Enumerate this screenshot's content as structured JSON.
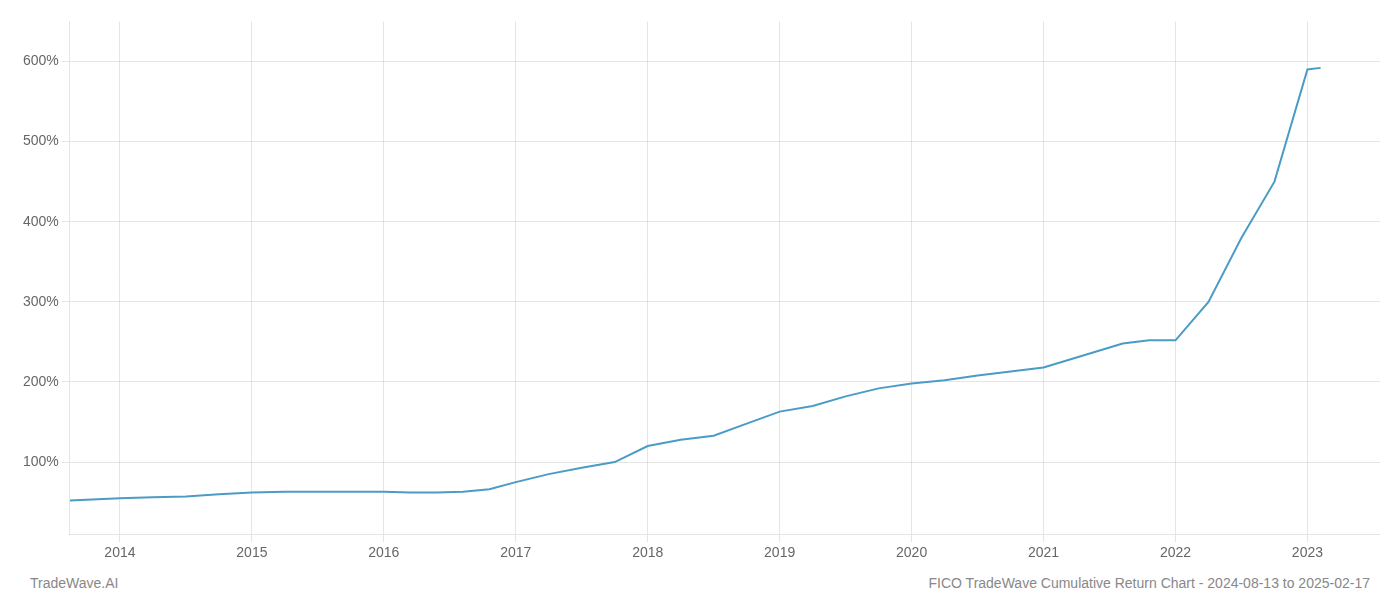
{
  "chart_data": {
    "type": "line",
    "title": "FICO TradeWave Cumulative Return Chart - 2024-08-13 to 2025-02-17",
    "annotations": [
      "TradeWave.AI"
    ],
    "x": [
      2013.62,
      2014.0,
      2014.25,
      2014.5,
      2014.75,
      2015.0,
      2015.25,
      2015.5,
      2015.75,
      2016.0,
      2016.2,
      2016.4,
      2016.6,
      2016.8,
      2017.0,
      2017.25,
      2017.5,
      2017.75,
      2018.0,
      2018.25,
      2018.5,
      2018.75,
      2019.0,
      2019.25,
      2019.5,
      2019.75,
      2020.0,
      2020.25,
      2020.5,
      2020.75,
      2021.0,
      2021.2,
      2021.4,
      2021.6,
      2021.8,
      2022.0,
      2022.25,
      2022.5,
      2022.75,
      2023.0,
      2023.1
    ],
    "values": [
      52,
      55,
      56,
      57,
      60,
      62,
      63,
      63,
      63,
      63,
      62,
      62,
      63,
      66,
      75,
      85,
      93,
      100,
      120,
      128,
      133,
      148,
      163,
      170,
      182,
      192,
      198,
      202,
      208,
      213,
      218,
      228,
      238,
      248,
      252,
      252,
      300,
      380,
      450,
      590,
      592
    ],
    "color": "#4a9cc7",
    "xlim": [
      2013.62,
      2023.55
    ],
    "xticks": [
      2014,
      2015,
      2016,
      2017,
      2018,
      2019,
      2020,
      2021,
      2022,
      2023
    ],
    "ylim": [
      10,
      650
    ],
    "yticks": [
      {
        "value": 100,
        "label": "100%"
      },
      {
        "value": 200,
        "label": "200%"
      },
      {
        "value": 300,
        "label": "300%"
      },
      {
        "value": 400,
        "label": "400%"
      },
      {
        "value": 500,
        "label": "500%"
      },
      {
        "value": 600,
        "label": "600%"
      }
    ],
    "grid": true
  }
}
